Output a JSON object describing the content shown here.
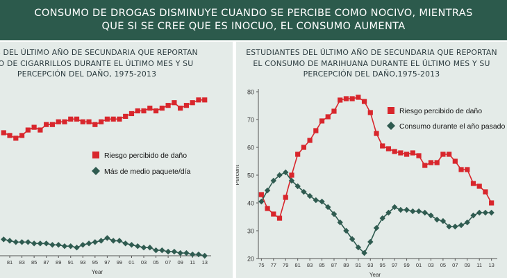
{
  "header": {
    "title": "CONSUMO DE DROGAS DISMINUYE CUANDO SE PERCIBE COMO NOCIVO, MIENTRAS\nQUE SI SE CREE QUE ES INOCUO, EL CONSUMO AUMENTA"
  },
  "colors": {
    "banner": "#2c5a4c",
    "panel_bg": "#e4ebe8",
    "risk_series": "#d8262c",
    "use_series": "#2f5b50"
  },
  "chart_data": [
    {
      "type": "line",
      "title_lines": [
        "TES DEL ÚLTIMO AÑO DE SECUNDARIA QUE REPORTAN",
        "UMO DE CIGARRILLOS DURANTE EL ÚLTIMO MES Y SU",
        "PERCEPCIÓN DEL DAÑO, 1975-2013"
      ],
      "xlabel": "Year",
      "ylabel": "",
      "x_tick_labels": [
        "81",
        "83",
        "85",
        "87",
        "89",
        "91",
        "93",
        "95",
        "97",
        "99",
        "01",
        "03",
        "05",
        "07",
        "09",
        "11",
        "13"
      ],
      "x": [
        1980,
        1981,
        1982,
        1983,
        1984,
        1985,
        1986,
        1987,
        1988,
        1989,
        1990,
        1991,
        1992,
        1993,
        1994,
        1995,
        1996,
        1997,
        1998,
        1999,
        2000,
        2001,
        2002,
        2003,
        2004,
        2005,
        2006,
        2007,
        2008,
        2009,
        2010,
        2011,
        2012,
        2013
      ],
      "xlim": [
        1979.4,
        2013.6
      ],
      "ylim": [
        20,
        80
      ],
      "grid": false,
      "legend_position": "center-right",
      "series": [
        {
          "name": "Riesgo percibido de daño",
          "marker": "square",
          "values": [
            65,
            64,
            63,
            64,
            66,
            67,
            66,
            68,
            68,
            69,
            69,
            70,
            70,
            69,
            69,
            68,
            69,
            70,
            70,
            70,
            71,
            72,
            73,
            73,
            74,
            73,
            74,
            75,
            76,
            74,
            75,
            76,
            77,
            77
          ]
        },
        {
          "name": "Más de medio paquete/día",
          "marker": "diamond",
          "values": [
            26,
            25.5,
            25,
            25,
            25,
            24.5,
            24.5,
            24.5,
            24,
            24,
            23.5,
            23.5,
            23,
            24,
            24.5,
            25,
            25.5,
            26.5,
            25.5,
            25.5,
            24.5,
            24,
            23.5,
            23,
            23,
            22,
            22,
            21.5,
            21.5,
            21,
            21,
            20.5,
            20.5,
            20
          ]
        }
      ]
    },
    {
      "type": "line",
      "title_lines": [
        "ESTUDIANTES DEL ÚLTIMO AÑO DE SECUNDARIA QUE REPORTAN",
        "EL CONSUMO DE MARIHUANA DURANTE EL ÚLTIMO MES Y SU",
        "PERCEPCIÓN DEL DAÑO,1975-2013"
      ],
      "xlabel": "Year",
      "ylabel": "Percent",
      "y_ticks": [
        20,
        30,
        40,
        50,
        60,
        70,
        80
      ],
      "x_tick_labels": [
        "75",
        "77",
        "79",
        "81",
        "83",
        "85",
        "87",
        "89",
        "91",
        "93",
        "95",
        "97",
        "99",
        "01",
        "03",
        "05",
        "07",
        "09",
        "11",
        "13"
      ],
      "x": [
        1975,
        1976,
        1977,
        1978,
        1979,
        1980,
        1981,
        1982,
        1983,
        1984,
        1985,
        1986,
        1987,
        1988,
        1989,
        1990,
        1991,
        1992,
        1993,
        1994,
        1995,
        1996,
        1997,
        1998,
        1999,
        2000,
        2001,
        2002,
        2003,
        2004,
        2005,
        2006,
        2007,
        2008,
        2009,
        2010,
        2011,
        2012,
        2013
      ],
      "xlim": [
        1974.5,
        2013.5
      ],
      "ylim": [
        20,
        80
      ],
      "grid": false,
      "legend_position": "top-right",
      "series": [
        {
          "name": "Riesgo percibido de daño",
          "marker": "square",
          "values": [
            43,
            38,
            36,
            34.5,
            42,
            50,
            57.5,
            60,
            62.5,
            66,
            69.5,
            71,
            73,
            77,
            77.5,
            77.5,
            78,
            76.5,
            72.5,
            65,
            60.5,
            59.5,
            58.5,
            58,
            57.5,
            58,
            57,
            53.5,
            54.5,
            54.5,
            57.5,
            57.5,
            55,
            52,
            52,
            47,
            46,
            44,
            40
          ]
        },
        {
          "name": "Consumo durante el año pasado",
          "marker": "diamond",
          "values": [
            40.5,
            44.5,
            48,
            50,
            51,
            48,
            46,
            44,
            42.5,
            41,
            40.5,
            38.5,
            36,
            33,
            30,
            27,
            24,
            22,
            26,
            31,
            34.5,
            36.5,
            38.5,
            37.5,
            37.5,
            37,
            37,
            36.5,
            35.5,
            34,
            33.5,
            31.5,
            31.5,
            32,
            33,
            35.5,
            36.5,
            36.5,
            36.5
          ]
        }
      ]
    }
  ]
}
